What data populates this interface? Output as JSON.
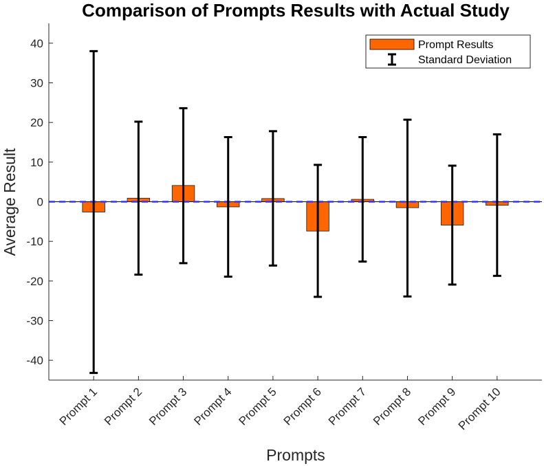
{
  "chart_data": {
    "type": "bar",
    "title": "Comparison of Prompts Results with Actual Study",
    "xlabel": "Prompts",
    "ylabel": "Average Result",
    "categories": [
      "Prompt 1",
      "Prompt 2",
      "Prompt 3",
      "Prompt 4",
      "Prompt 5",
      "Prompt 6",
      "Prompt 7",
      "Prompt 8",
      "Prompt 9",
      "Prompt 10"
    ],
    "series": [
      {
        "name": "Prompt Results",
        "values": [
          -2.6,
          0.9,
          4.1,
          -1.3,
          0.8,
          -7.4,
          0.6,
          -1.5,
          -5.9,
          -0.9
        ],
        "error_upper": [
          38.0,
          20.2,
          23.6,
          16.3,
          17.8,
          9.3,
          16.3,
          20.7,
          9.1,
          17.0
        ],
        "error_lower": [
          -43.2,
          -18.4,
          -15.5,
          -18.9,
          -16.1,
          -24.0,
          -15.1,
          -23.9,
          -20.9,
          -18.7
        ],
        "color": "#ff6600"
      }
    ],
    "error_bar_label": "Standard Deviation",
    "reference_line": {
      "y": 0,
      "color": "#3333ff",
      "style": "dashed"
    },
    "ylim": [
      -45,
      45
    ],
    "yticks": [
      -40,
      -30,
      -20,
      -10,
      0,
      10,
      20,
      30,
      40
    ],
    "ytick_labels": [
      "-40",
      "-30",
      "-20",
      "-10",
      "0",
      "10",
      "20",
      "30",
      "40"
    ],
    "xlim": [
      0,
      11
    ],
    "grid": false,
    "legend_position": "top-right"
  }
}
